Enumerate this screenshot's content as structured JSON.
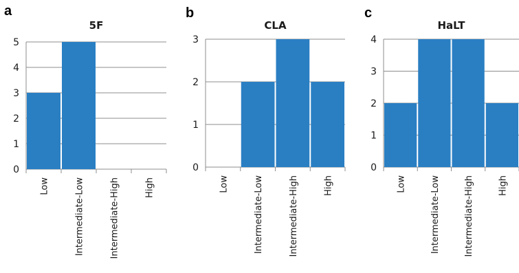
{
  "chart_data": [
    {
      "type": "bar",
      "panel": "a",
      "title": "5F",
      "categories": [
        "Low",
        "Intermediate-Low",
        "Intermediate-High",
        "High"
      ],
      "values": [
        3,
        5,
        0,
        0
      ],
      "ylim": [
        0,
        5
      ],
      "yticks": [
        0,
        1,
        2,
        3,
        4,
        5
      ],
      "grid": true,
      "bar_color": "#2a7fc3"
    },
    {
      "type": "bar",
      "panel": "b",
      "title": "CLA",
      "categories": [
        "Low",
        "Intermediate-Low",
        "Intermediate-High",
        "High"
      ],
      "values": [
        0,
        2,
        3,
        2
      ],
      "ylim": [
        0,
        3
      ],
      "yticks": [
        0,
        1,
        2,
        3
      ],
      "grid": true,
      "bar_color": "#2a7fc3"
    },
    {
      "type": "bar",
      "panel": "c",
      "title": "HaLT",
      "categories": [
        "Low",
        "Intermediate-Low",
        "Intermediate-High",
        "High"
      ],
      "values": [
        2,
        4,
        4,
        2
      ],
      "ylim": [
        0,
        4
      ],
      "yticks": [
        0,
        1,
        2,
        3,
        4
      ],
      "grid": true,
      "bar_color": "#2a7fc3"
    }
  ]
}
